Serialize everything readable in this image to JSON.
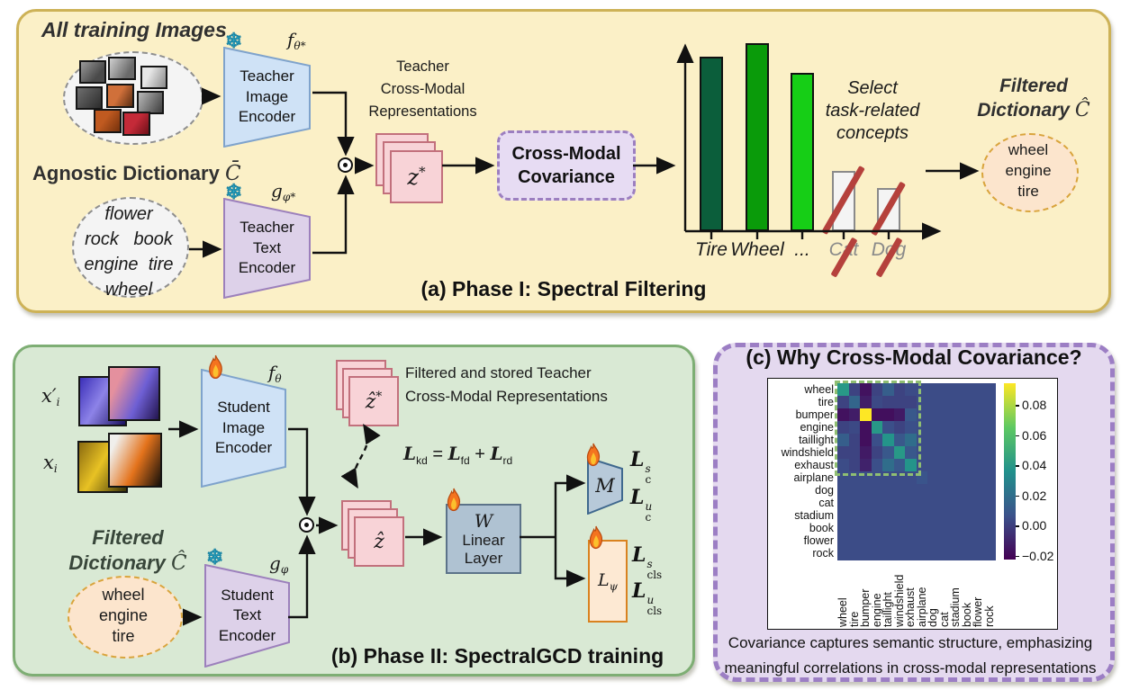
{
  "icons": {
    "snowflake": "❄",
    "odot": "⊙",
    "fire": "flame"
  },
  "colors": {
    "panel_a_bg": "#FBF0C7",
    "panel_a_border": "#CDB257",
    "panel_b_bg": "#D9E9D4",
    "panel_b_border": "#7EAE74",
    "panel_c_bg": "#E4D9EF",
    "panel_c_border": "#9C7EC4",
    "image_encoder_fill": "#CFE2F6",
    "image_encoder_stroke": "#7FA3CC",
    "text_encoder_fill": "#DDD1E9",
    "text_encoder_stroke": "#9C80BC",
    "representation_fill": "#F8D3D7",
    "representation_stroke": "#C2707C",
    "covariance_fill": "#E7DCF3",
    "covariance_border": "#9C7FC0",
    "filtered_dict_fill": "#FCE5CD",
    "filtered_dict_border": "#D9A43C",
    "linear_layer_fill": "#AFC2D2",
    "m_head_fill": "#B7C9D9",
    "lpsi_fill": "#FDE9D3",
    "lpsi_border": "#D9821F",
    "strike_color": "#B5413C"
  },
  "panel_a": {
    "title": "(a) Phase I: Spectral Filtering",
    "training_images_label": "All training Images",
    "agnostic_dict_label": "Agnostic Dictionary",
    "agnostic_dict_symbol": "C̄",
    "agnostic_words": [
      "flower",
      "rock",
      "book",
      "engine",
      "tire",
      "wheel"
    ],
    "teacher_image_encoder": [
      "Teacher",
      "Image",
      "Encoder"
    ],
    "f_param": "f",
    "f_sub": "θ*",
    "teacher_text_encoder": [
      "Teacher",
      "Text",
      "Encoder"
    ],
    "g_param": "g",
    "g_sub": "φ*",
    "repr_label": [
      "Teacher",
      "Cross-Modal",
      "Representations"
    ],
    "z_main": "z",
    "z_sup": "*",
    "covariance_box": [
      "Cross-Modal",
      "Covariance"
    ],
    "select_label": [
      "Select",
      "task-related",
      "concepts"
    ],
    "filtered_dict_label": [
      "Filtered",
      "Dictionary"
    ],
    "filtered_dict_symbol": "Ĉ",
    "filtered_words": [
      "wheel",
      "engine",
      "tire"
    ]
  },
  "panel_b": {
    "title": "(b) Phase II: SpectralGCD training",
    "x_aug_main": "x′",
    "x_aug_sub": "i",
    "x_main": "x",
    "x_sub": "i",
    "student_image_encoder": [
      "Student",
      "Image",
      "Encoder"
    ],
    "f_param": "f",
    "f_sub": "θ",
    "student_text_encoder": [
      "Student",
      "Text",
      "Encoder"
    ],
    "g_param": "g",
    "g_sub": "φ",
    "filtered_dict_label": [
      "Filtered",
      "Dictionary"
    ],
    "filtered_dict_symbol": "Ĉ",
    "filtered_words": [
      "wheel",
      "engine",
      "tire"
    ],
    "zhat_star_main": "ẑ",
    "zhat_star_sup": "*",
    "zhat_main": "ẑ",
    "stored_label": [
      "Filtered and stored Teacher",
      "Cross-Modal Representations"
    ],
    "kd_eq": {
      "l1": "L",
      "s1": "kd",
      "eq": "=",
      "l2": "L",
      "s2": "fd",
      "plus": "+",
      "l3": "L",
      "s3": "rd"
    },
    "w_param": "W",
    "linear_label": [
      "Linear",
      "Layer"
    ],
    "m_symbol": "M",
    "lpsi_main": "L",
    "lpsi_sub": "ψ",
    "loss_c": [
      {
        "main": "L",
        "sup": "s",
        "sub": "c"
      },
      {
        "main": "L",
        "sup": "u",
        "sub": "c"
      }
    ],
    "loss_cls": [
      {
        "main": "L",
        "sup": "s",
        "sub": "cls"
      },
      {
        "main": "L",
        "sup": "u",
        "sub": "cls"
      }
    ]
  },
  "panel_c": {
    "title": "(c) Why Cross-Modal Covariance?",
    "caption": [
      "Covariance captures semantic structure, emphasizing",
      "meaningful correlations in cross-modal representations"
    ]
  },
  "chart_data": [
    {
      "type": "bar",
      "panel": "a",
      "title": "",
      "categories": [
        "Tire",
        "Wheel",
        "...",
        "Cat",
        "Dog"
      ],
      "values": [
        0.93,
        1.0,
        0.84,
        0.32,
        0.23
      ],
      "ylim": [
        0,
        1.1
      ],
      "bar_colors": [
        "#0B5E3B",
        "#0A9B0A",
        "#16CE16",
        "#F4F4F4",
        "#F4F4F4"
      ],
      "bar_borders": [
        "#111111",
        "#111111",
        "#111111",
        "#8a8a8a",
        "#8a8a8a"
      ],
      "crossed_out": [
        false,
        false,
        false,
        true,
        true
      ],
      "xlabel": "",
      "ylabel": ""
    },
    {
      "type": "heatmap",
      "panel": "c",
      "labels": [
        "wheel",
        "tire",
        "bumper",
        "engine",
        "taillight",
        "windshield",
        "exhaust",
        "airplane",
        "dog",
        "cat",
        "stadium",
        "book",
        "flower",
        "rock"
      ],
      "matrix": [
        [
          0.04,
          0.002,
          -0.016,
          0.002,
          0.013,
          0.002,
          0.005,
          0.005,
          0.005,
          0.005,
          0.005,
          0.005,
          0.005,
          0.005
        ],
        [
          0.002,
          0.016,
          -0.012,
          0.004,
          0.002,
          0.002,
          0.002,
          0.005,
          0.005,
          0.005,
          0.005,
          0.005,
          0.005,
          0.005
        ],
        [
          -0.016,
          -0.012,
          0.095,
          -0.017,
          -0.017,
          -0.013,
          0.01,
          0.005,
          0.005,
          0.005,
          0.005,
          0.005,
          0.005,
          0.005
        ],
        [
          0.002,
          0.004,
          -0.017,
          0.04,
          0.006,
          0.002,
          0.006,
          0.005,
          0.005,
          0.005,
          0.005,
          0.005,
          0.005,
          0.005
        ],
        [
          0.013,
          0.002,
          -0.017,
          0.006,
          0.038,
          0.01,
          0.02,
          0.005,
          0.005,
          0.005,
          0.005,
          0.005,
          0.005,
          0.005
        ],
        [
          0.002,
          0.002,
          -0.013,
          0.002,
          0.01,
          0.04,
          0.01,
          0.005,
          0.005,
          0.005,
          0.005,
          0.005,
          0.005,
          0.005
        ],
        [
          0.005,
          0.002,
          -0.01,
          0.006,
          0.02,
          0.01,
          0.038,
          0.005,
          0.005,
          0.005,
          0.005,
          0.005,
          0.005,
          0.005
        ],
        [
          0.005,
          0.005,
          0.005,
          0.005,
          0.005,
          0.005,
          0.005,
          0.008,
          0.005,
          0.005,
          0.005,
          0.005,
          0.005,
          0.005
        ],
        [
          0.005,
          0.005,
          0.005,
          0.005,
          0.005,
          0.005,
          0.005,
          0.005,
          0.005,
          0.005,
          0.005,
          0.005,
          0.005,
          0.005
        ],
        [
          0.005,
          0.005,
          0.005,
          0.005,
          0.005,
          0.005,
          0.005,
          0.005,
          0.005,
          0.005,
          0.005,
          0.005,
          0.005,
          0.005
        ],
        [
          0.005,
          0.005,
          0.005,
          0.005,
          0.005,
          0.005,
          0.005,
          0.005,
          0.005,
          0.005,
          0.005,
          0.005,
          0.005,
          0.005
        ],
        [
          0.005,
          0.005,
          0.005,
          0.005,
          0.005,
          0.005,
          0.005,
          0.005,
          0.005,
          0.005,
          0.005,
          0.005,
          0.005,
          0.005
        ],
        [
          0.005,
          0.005,
          0.005,
          0.005,
          0.005,
          0.005,
          0.005,
          0.005,
          0.005,
          0.005,
          0.005,
          0.005,
          0.005,
          0.005
        ],
        [
          0.005,
          0.005,
          0.005,
          0.005,
          0.005,
          0.005,
          0.005,
          0.005,
          0.005,
          0.005,
          0.005,
          0.005,
          0.005,
          0.005
        ]
      ],
      "vmin": -0.022,
      "vmax": 0.095,
      "colorbar_ticks": [
        "0.08",
        "0.06",
        "0.04",
        "0.02",
        "0.00",
        "−0.02"
      ],
      "colorbar_tick_values": [
        0.08,
        0.06,
        0.04,
        0.02,
        0.0,
        -0.02
      ],
      "highlight_block_size": 7
    }
  ]
}
